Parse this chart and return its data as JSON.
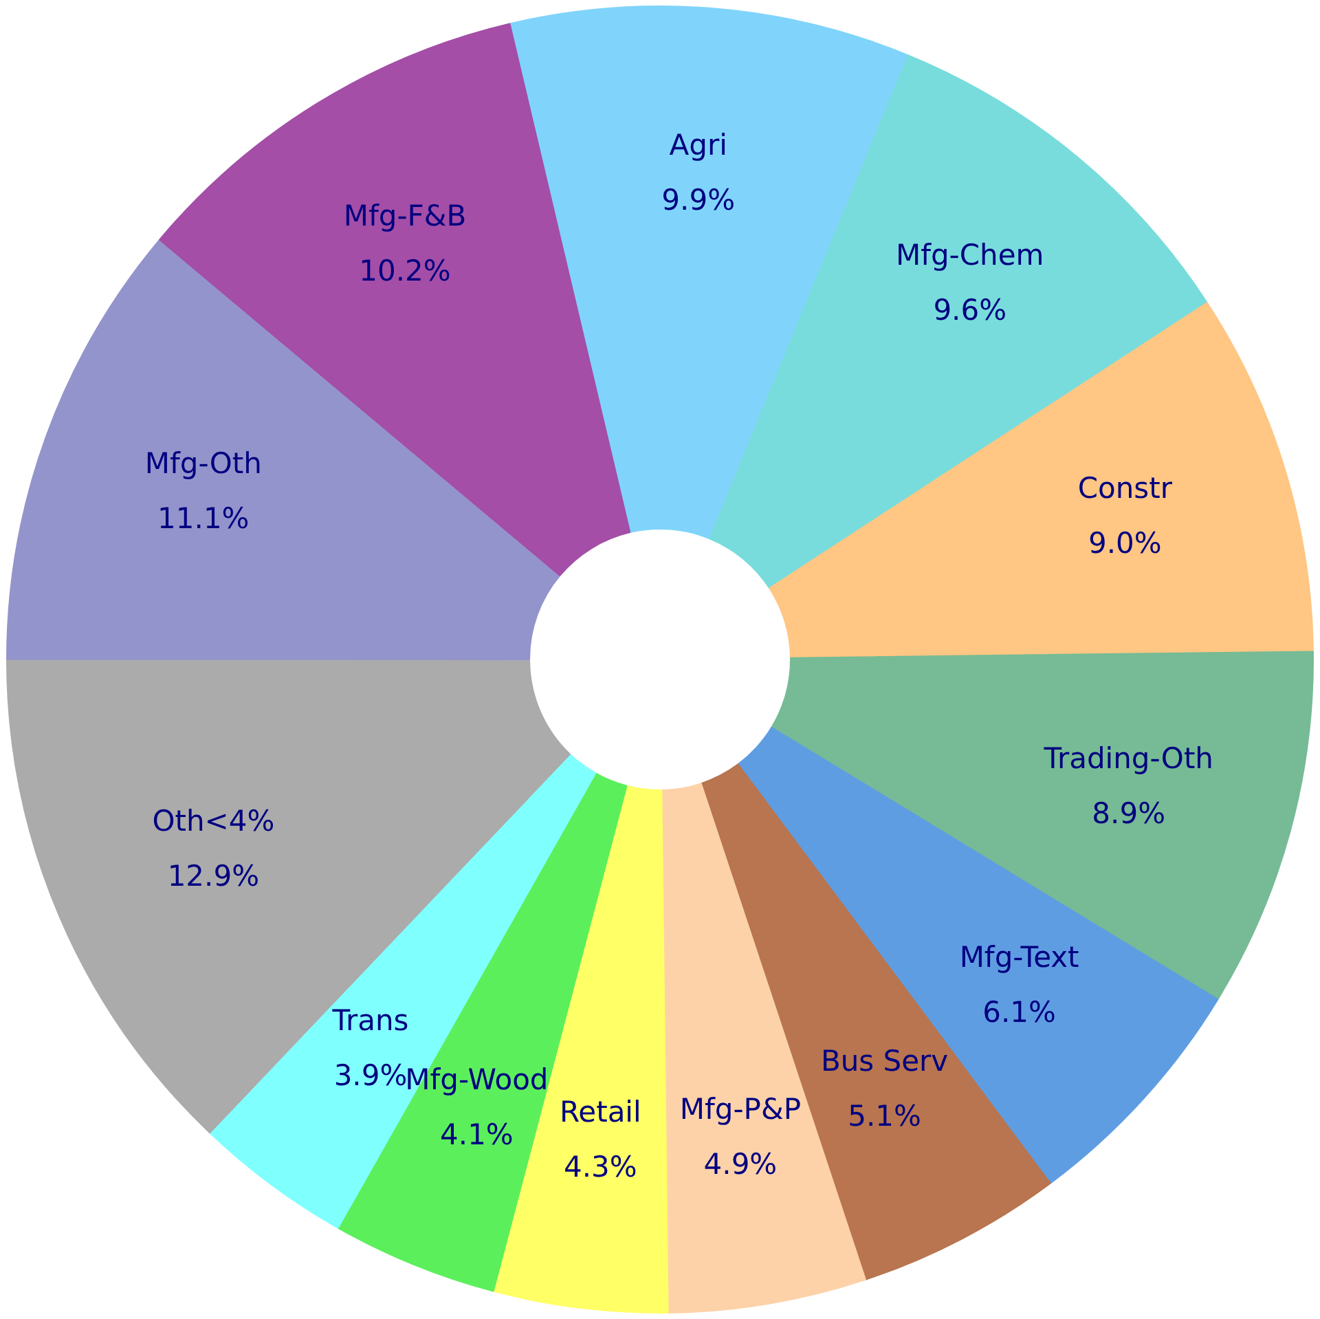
{
  "chart_data": {
    "type": "donut",
    "categories": [
      "Agri",
      "Mfg-Chem",
      "Constr",
      "Trading-Oth",
      "Mfg-Text",
      "Bus Serv",
      "Mfg-P&P",
      "Retail",
      "Mfg-Wood",
      "Trans",
      "Oth<4%",
      "Mfg-Oth",
      "Mfg-F&B"
    ],
    "values": [
      9.9,
      9.6,
      9.0,
      8.9,
      6.1,
      5.1,
      4.9,
      4.3,
      4.1,
      3.9,
      12.9,
      11.1,
      10.2
    ],
    "value_labels": [
      "9.9%",
      "9.6%",
      "9.0%",
      "8.9%",
      "6.1%",
      "5.1%",
      "4.9%",
      "4.3%",
      "4.1%",
      "3.9%",
      "12.9%",
      "11.1%",
      "10.2%"
    ],
    "colors": [
      "#80d4fb",
      "#78dcdc",
      "#ffc684",
      "#76bb95",
      "#5f9de2",
      "#b8754f",
      "#fdd2a8",
      "#ffff66",
      "#5cef5c",
      "#80ffff",
      "#ababab",
      "#9494cc",
      "#a44ea7"
    ],
    "legend": false
  }
}
